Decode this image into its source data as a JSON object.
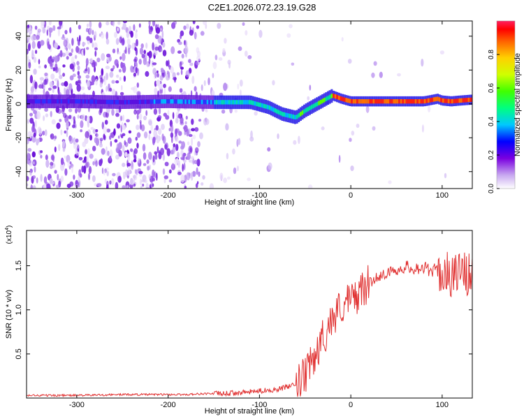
{
  "title": "C2E1.2026.072.23.19.G28",
  "colors": {
    "spectrogram_low": "#e8dcf8",
    "spectrogram_mid": "#8a3fe0",
    "ridge": "#00b8ff",
    "snr_line": "#e03030",
    "axis": "#000000"
  },
  "chart_data": [
    {
      "type": "heatmap",
      "title": "C2E1.2026.072.23.19.G28",
      "xlabel": "Height of straight line (km)",
      "ylabel": "Frequency (Hz)",
      "xlim": [
        -355,
        133
      ],
      "ylim": [
        -50,
        49
      ],
      "xticks": [
        -300,
        -200,
        -100,
        0,
        100
      ],
      "xtick_labels": [
        "-300",
        "-200",
        "-100",
        "0",
        "100"
      ],
      "yticks": [
        -40,
        -20,
        0,
        20,
        40
      ],
      "ytick_labels": [
        "-40",
        "-20",
        "0",
        "20",
        "40"
      ],
      "ridge": {
        "x": [
          -355,
          -300,
          -250,
          -200,
          -150,
          -110,
          -90,
          -75,
          -60,
          -50,
          -40,
          -30,
          -20,
          -10,
          0,
          20,
          40,
          60,
          80,
          95,
          100,
          110,
          120,
          133
        ],
        "y": [
          1.5,
          1.5,
          1.0,
          1.5,
          1.0,
          1.0,
          -2,
          -6,
          -8,
          -4,
          -1,
          2,
          5,
          3,
          1.5,
          1.5,
          1.5,
          1.5,
          1.5,
          3,
          2,
          1.5,
          2,
          2.5
        ]
      },
      "colorbar": {
        "label": "Normalized spectral amplitude",
        "range": [
          0,
          1
        ],
        "ticks": [
          0.0,
          0.2,
          0.4,
          0.6,
          0.8
        ],
        "tick_labels": [
          "0.0",
          "0.2",
          "0.4",
          "0.6",
          "0.8"
        ]
      }
    },
    {
      "type": "line",
      "xlabel": "Height of straight line (km)",
      "ylabel": "SNR (10 * v/v)",
      "scale_label": "(x10",
      "scale_exponent": "4",
      "scale_close": ")",
      "xlim": [
        -355,
        133
      ],
      "ylim": [
        0,
        1.9
      ],
      "xticks": [
        -300,
        -200,
        -100,
        0,
        100
      ],
      "xtick_labels": [
        "-300",
        "-200",
        "-100",
        "0",
        "100"
      ],
      "yticks": [
        0.5,
        1.0,
        1.5
      ],
      "ytick_labels": [
        "0.5",
        "1.0",
        "1.5"
      ],
      "series": [
        {
          "name": "SNR",
          "x": [
            -355,
            -300,
            -250,
            -200,
            -180,
            -160,
            -140,
            -120,
            -100,
            -80,
            -60,
            -50,
            -40,
            -30,
            -20,
            -10,
            0,
            10,
            20,
            30,
            40,
            50,
            60,
            70,
            80,
            90,
            100,
            110,
            120,
            133
          ],
          "y": [
            0.03,
            0.03,
            0.04,
            0.04,
            0.04,
            0.05,
            0.05,
            0.06,
            0.08,
            0.1,
            0.15,
            0.25,
            0.45,
            0.7,
            0.9,
            1.05,
            1.1,
            1.2,
            1.3,
            1.38,
            1.42,
            1.45,
            1.48,
            1.48,
            1.47,
            1.45,
            1.42,
            1.4,
            1.42,
            1.38
          ]
        }
      ]
    }
  ]
}
